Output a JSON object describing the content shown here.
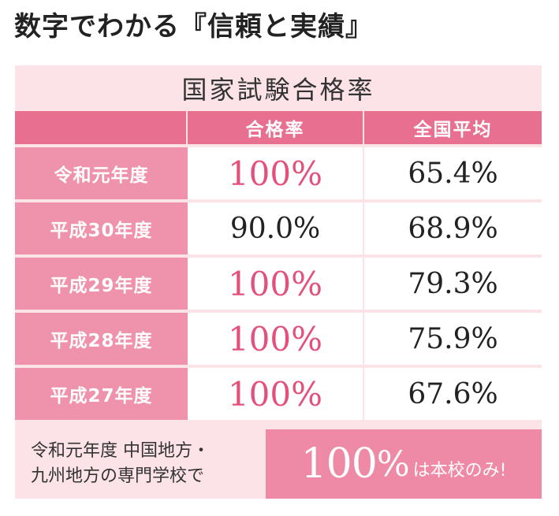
{
  "heading": "数字でわかる『信頼と実績』",
  "table": {
    "title": "国家試験合格率",
    "columns": [
      "",
      "合格率",
      "全国平均"
    ],
    "rows": [
      {
        "year": "令和元年度",
        "pass_rate": "100%",
        "national_avg": "65.4%"
      },
      {
        "year": "平成30年度",
        "pass_rate": "90.0%",
        "national_avg": "68.9%"
      },
      {
        "year": "平成29年度",
        "pass_rate": "100%",
        "national_avg": "79.3%"
      },
      {
        "year": "平成28年度",
        "pass_rate": "100%",
        "national_avg": "75.9%"
      },
      {
        "year": "平成27年度",
        "pass_rate": "100%",
        "national_avg": "67.6%"
      }
    ]
  },
  "footer": {
    "line1": "令和元年度 中国地方・",
    "line2": "九州地方の専門学校で",
    "big_number": "100",
    "percent": "%",
    "suffix": "は本校のみ!"
  },
  "colors": {
    "header_pink": "#e96f91",
    "year_pink": "#ef93ac",
    "highlight_text": "#e3507b",
    "panel_bg": "#fbe3e8",
    "footer_pink": "#ef8aa6"
  }
}
